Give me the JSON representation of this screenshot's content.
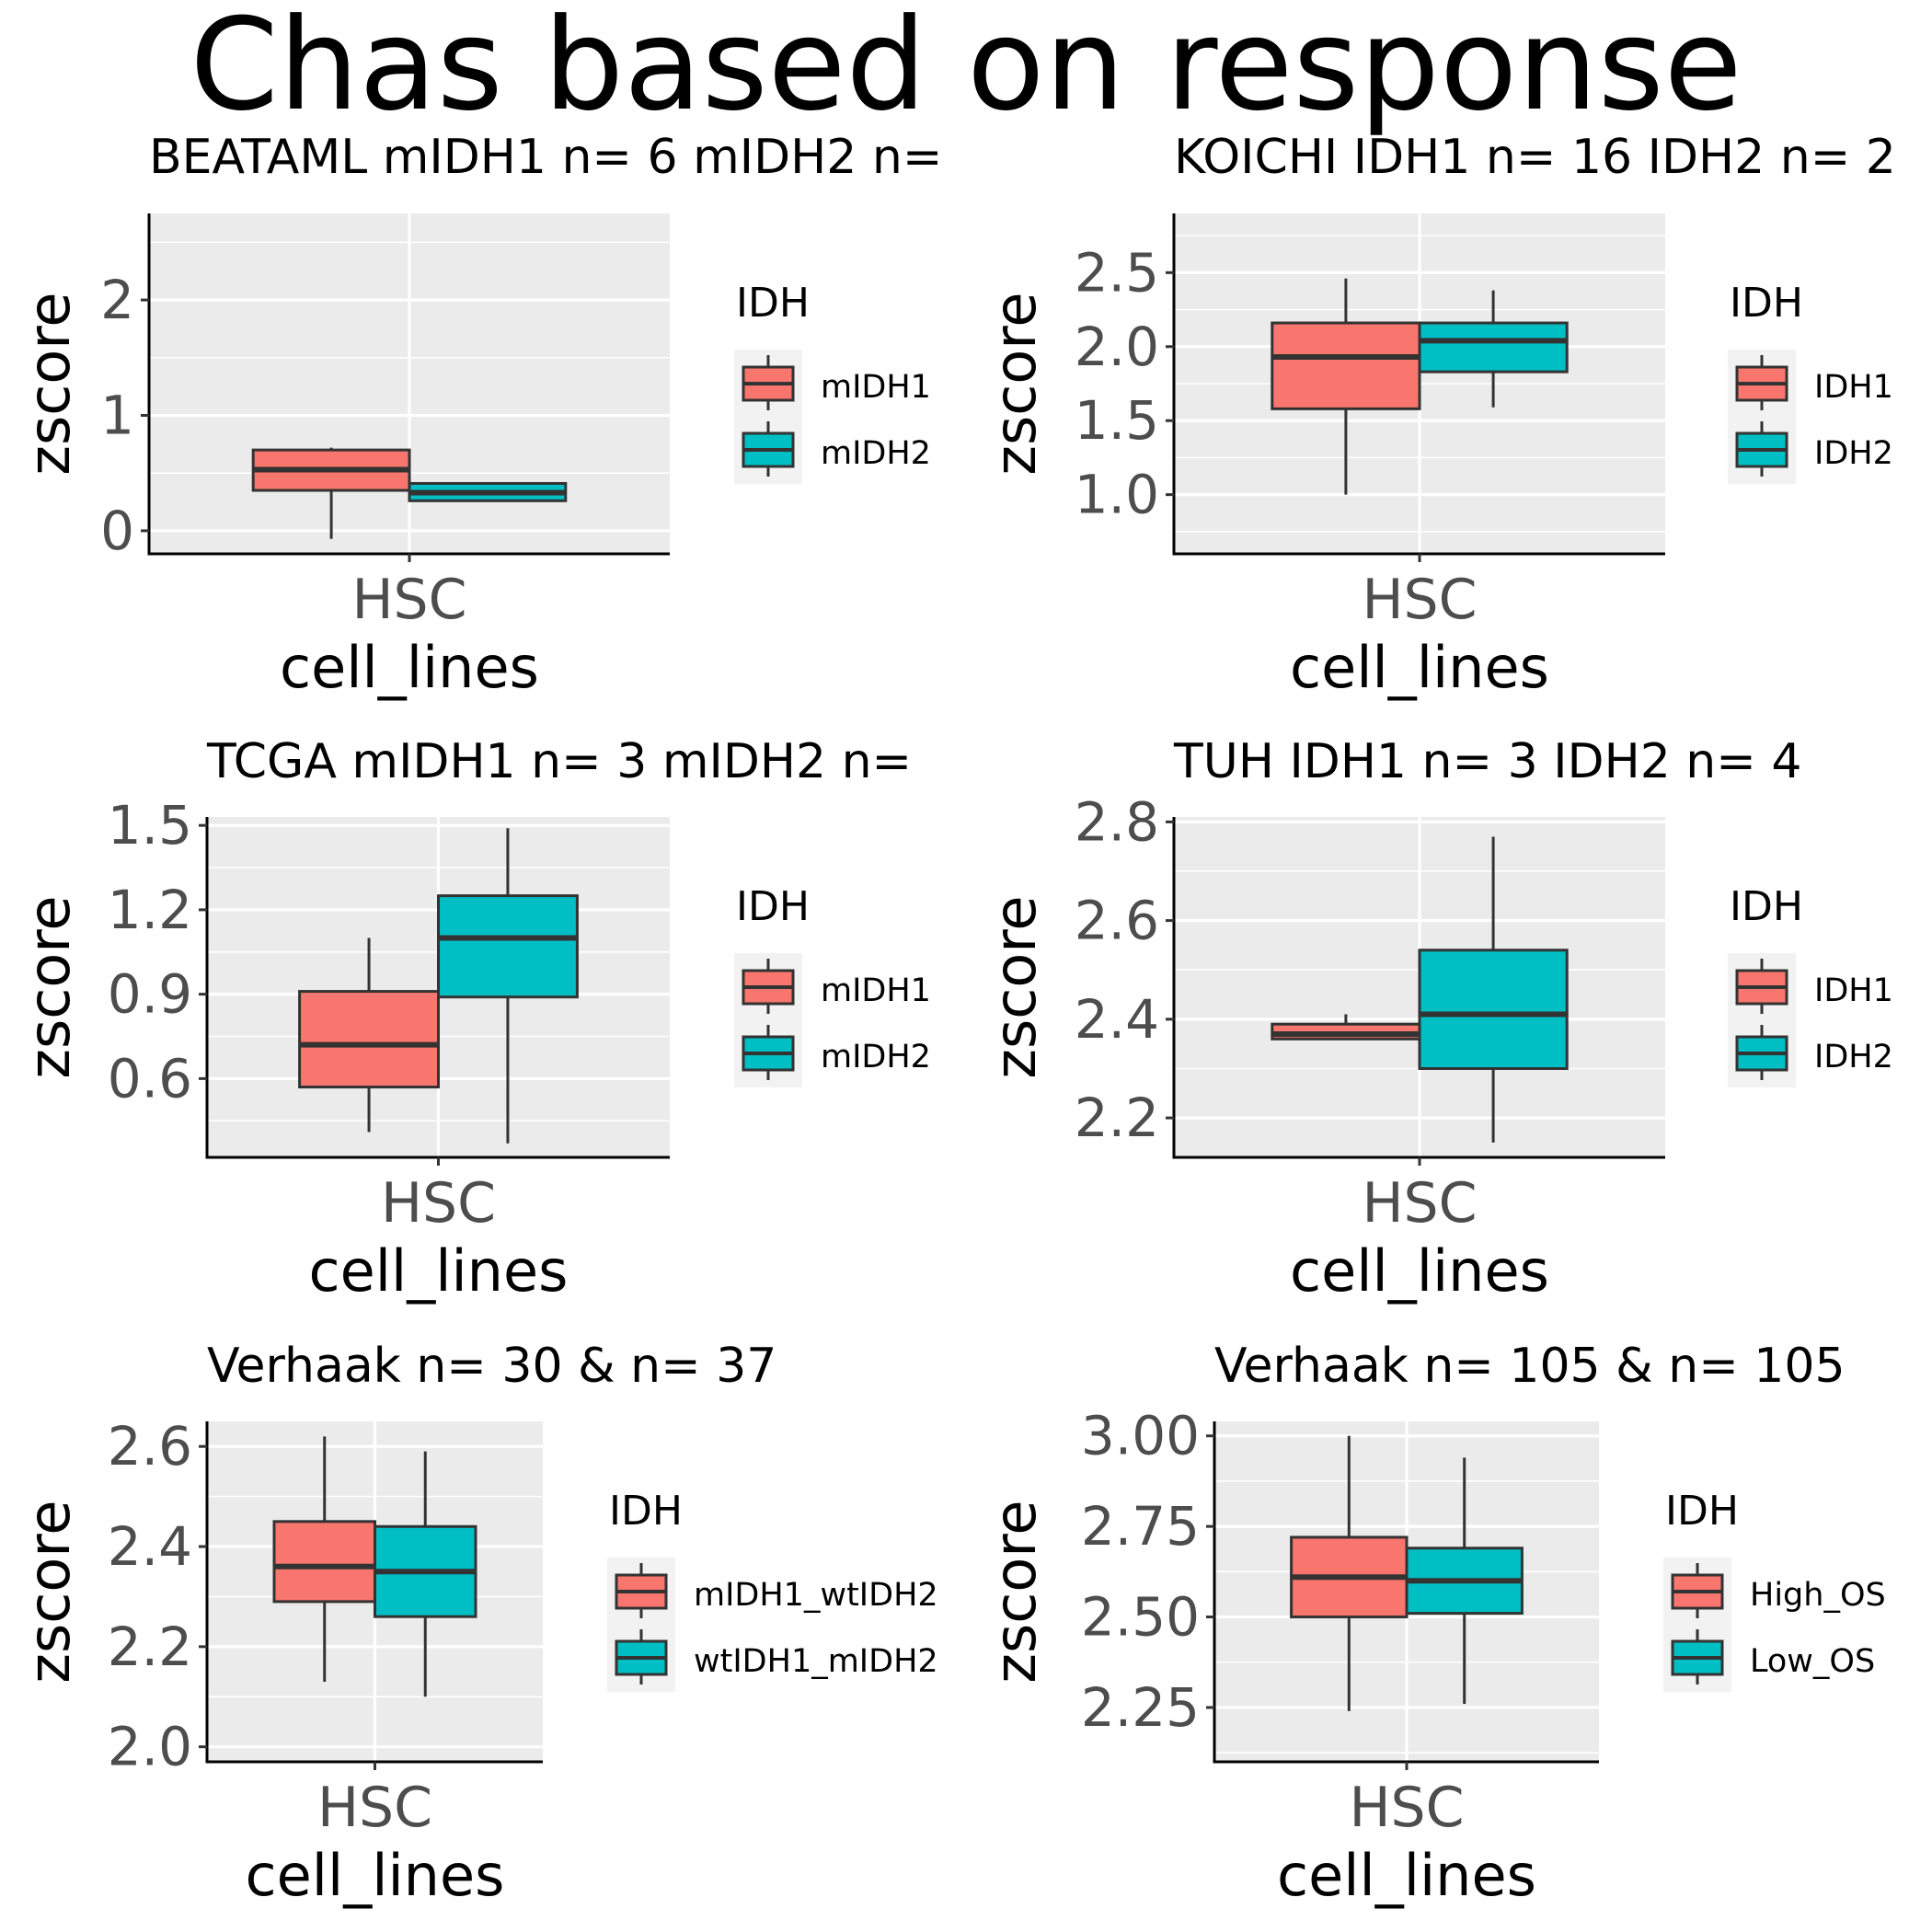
{
  "page": {
    "title": "Chas based on response"
  },
  "chart_data": [
    {
      "type": "boxplot",
      "title": "BEATAML mIDH1 n= 6 mIDH2 n=",
      "xlabel": "cell_lines",
      "ylabel": "zscore",
      "categories": [
        "HSC"
      ],
      "ylim": [
        -0.2,
        2.75
      ],
      "yticks": [
        "0",
        "1",
        "2"
      ],
      "ytick_values": [
        0,
        1,
        2
      ],
      "grid": true,
      "legend": {
        "title": "IDH",
        "position": "right"
      },
      "series": [
        {
          "name": "mIDH1",
          "color": "#F8766D",
          "whisker_low": -0.07,
          "q1": 0.35,
          "median": 0.53,
          "q3": 0.7,
          "whisker_high": 0.72
        },
        {
          "name": "mIDH2",
          "color": "#00BFC4",
          "whisker_low": 0.26,
          "q1": 0.26,
          "median": 0.33,
          "q3": 0.41,
          "whisker_high": 0.42
        }
      ]
    },
    {
      "type": "boxplot",
      "title": "KOICHI IDH1 n= 16 IDH2 n= 2",
      "xlabel": "cell_lines",
      "ylabel": "zscore",
      "categories": [
        "HSC"
      ],
      "ylim": [
        0.6,
        2.9
      ],
      "yticks": [
        "1.0",
        "1.5",
        "2.0",
        "2.5"
      ],
      "ytick_values": [
        1.0,
        1.5,
        2.0,
        2.5
      ],
      "grid": true,
      "legend": {
        "title": "IDH",
        "position": "right"
      },
      "series": [
        {
          "name": "IDH1",
          "color": "#F8766D",
          "whisker_low": 1.0,
          "q1": 1.58,
          "median": 1.93,
          "q3": 2.16,
          "whisker_high": 2.46
        },
        {
          "name": "IDH2",
          "color": "#00BFC4",
          "whisker_low": 1.59,
          "q1": 1.83,
          "median": 2.04,
          "q3": 2.16,
          "whisker_high": 2.38
        }
      ]
    },
    {
      "type": "boxplot",
      "title": "TCGA mIDH1 n= 3 mIDH2 n=",
      "xlabel": "cell_lines",
      "ylabel": "zscore",
      "categories": [
        "HSC"
      ],
      "ylim": [
        0.32,
        1.53
      ],
      "yticks": [
        "0.6",
        "0.9",
        "1.2",
        "1.5"
      ],
      "ytick_values": [
        0.6,
        0.9,
        1.2,
        1.5
      ],
      "grid": true,
      "legend": {
        "title": "IDH",
        "position": "right"
      },
      "series": [
        {
          "name": "mIDH1",
          "color": "#F8766D",
          "whisker_low": 0.41,
          "q1": 0.57,
          "median": 0.72,
          "q3": 0.91,
          "whisker_high": 1.1
        },
        {
          "name": "mIDH2",
          "color": "#00BFC4",
          "whisker_low": 0.37,
          "q1": 0.89,
          "median": 1.1,
          "q3": 1.25,
          "whisker_high": 1.49
        }
      ]
    },
    {
      "type": "boxplot",
      "title": "TUH IDH1 n= 3 IDH2 n= 4",
      "xlabel": "cell_lines",
      "ylabel": "zscore",
      "categories": [
        "HSC"
      ],
      "ylim": [
        2.12,
        2.81
      ],
      "yticks": [
        "2.2",
        "2.4",
        "2.6",
        "2.8"
      ],
      "ytick_values": [
        2.2,
        2.4,
        2.6,
        2.8
      ],
      "grid": true,
      "legend": {
        "title": "IDH",
        "position": "right"
      },
      "series": [
        {
          "name": "IDH1",
          "color": "#F8766D",
          "whisker_low": 2.36,
          "q1": 2.36,
          "median": 2.37,
          "q3": 2.39,
          "whisker_high": 2.41
        },
        {
          "name": "IDH2",
          "color": "#00BFC4",
          "whisker_low": 2.15,
          "q1": 2.3,
          "median": 2.41,
          "q3": 2.54,
          "whisker_high": 2.77
        }
      ]
    },
    {
      "type": "boxplot",
      "title": "Verhaak n= 30 & n= 37",
      "xlabel": "cell_lines",
      "ylabel": "zscore",
      "categories": [
        "HSC"
      ],
      "ylim": [
        1.97,
        2.65
      ],
      "yticks": [
        "2.0",
        "2.2",
        "2.4",
        "2.6"
      ],
      "ytick_values": [
        2.0,
        2.2,
        2.4,
        2.6
      ],
      "grid": true,
      "legend": {
        "title": "IDH",
        "position": "right"
      },
      "series": [
        {
          "name": "mIDH1_wtIDH2",
          "color": "#F8766D",
          "whisker_low": 2.13,
          "q1": 2.29,
          "median": 2.36,
          "q3": 2.45,
          "whisker_high": 2.62
        },
        {
          "name": "wtIDH1_mIDH2",
          "color": "#00BFC4",
          "whisker_low": 2.1,
          "q1": 2.26,
          "median": 2.35,
          "q3": 2.44,
          "whisker_high": 2.59
        }
      ]
    },
    {
      "type": "boxplot",
      "title": "Verhaak n= 105 & n= 105",
      "xlabel": "cell_lines",
      "ylabel": "zscore",
      "categories": [
        "HSC"
      ],
      "ylim": [
        2.1,
        3.04
      ],
      "yticks": [
        "2.25",
        "2.50",
        "2.75",
        "3.00"
      ],
      "ytick_values": [
        2.25,
        2.5,
        2.75,
        3.0
      ],
      "grid": true,
      "legend": {
        "title": "IDH",
        "position": "right"
      },
      "series": [
        {
          "name": "High_OS",
          "color": "#F8766D",
          "whisker_low": 2.24,
          "q1": 2.5,
          "median": 2.61,
          "q3": 2.72,
          "whisker_high": 3.0
        },
        {
          "name": "Low_OS",
          "color": "#00BFC4",
          "whisker_low": 2.26,
          "q1": 2.51,
          "median": 2.6,
          "q3": 2.69,
          "whisker_high": 2.94
        }
      ]
    }
  ]
}
